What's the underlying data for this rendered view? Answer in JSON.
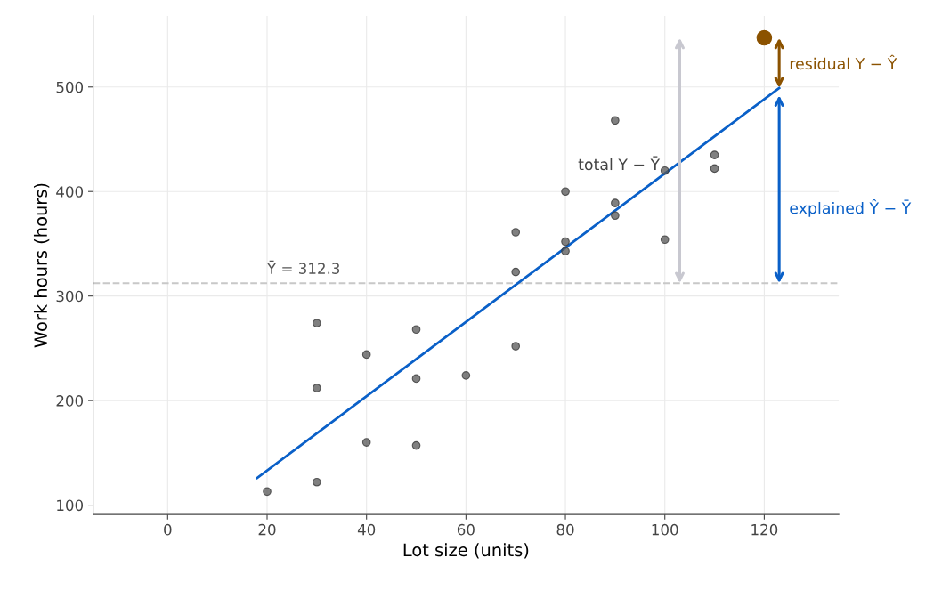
{
  "chart_data": {
    "type": "scatter",
    "xlabel": "Lot size (units)",
    "ylabel": "Work hours (hours)",
    "xlim": [
      -15,
      135
    ],
    "ylim": [
      91,
      568
    ],
    "xticks": [
      0,
      20,
      40,
      60,
      80,
      100,
      120
    ],
    "yticks": [
      100,
      200,
      300,
      400,
      500
    ],
    "grid": true,
    "marker": "circle",
    "series": [
      {
        "color": "#555555",
        "x": [
          20,
          30,
          30,
          30,
          40,
          40,
          50,
          50,
          50,
          60,
          70,
          70,
          70,
          80,
          80,
          80,
          90,
          90,
          90,
          100,
          100,
          110,
          110
        ],
        "values": [
          113,
          274,
          212,
          122,
          244,
          160,
          268,
          221,
          157,
          224,
          361,
          323,
          252,
          400,
          352,
          343,
          468,
          389,
          377,
          420,
          354,
          435,
          422
        ]
      },
      {
        "type": "line",
        "marker": "none",
        "color": "#0a60c8",
        "x": [
          18,
          123
        ],
        "values": [
          126,
          499
        ]
      },
      {
        "color": "#8b5200",
        "x": [
          120
        ],
        "values": [
          547
        ]
      }
    ],
    "ref_lines": [
      {
        "axis": "y",
        "value": 312.3,
        "label": "Ȳ = 312.3",
        "color": "#c8c8c8",
        "line_style": "dashed"
      }
    ],
    "annotations": [
      "total Y − Ȳ",
      "residual Y − Ŷ",
      "explained Ŷ − Ȳ"
    ]
  }
}
